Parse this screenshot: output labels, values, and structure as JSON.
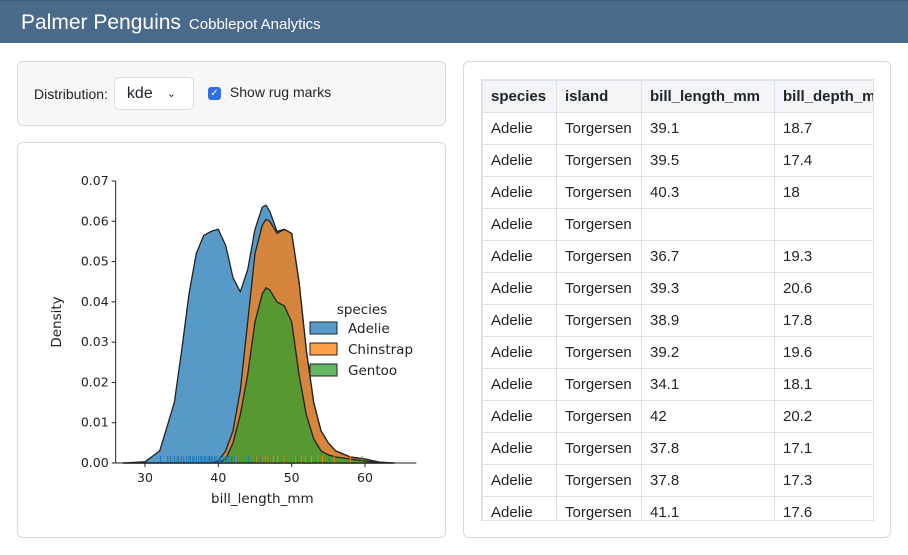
{
  "header": {
    "title": "Palmer Penguins",
    "subtitle": "Cobblepot Analytics"
  },
  "controls": {
    "distribution_label": "Distribution:",
    "distribution_value": "kde",
    "rug_label": "Show rug marks",
    "rug_checked": true
  },
  "colors": {
    "header": "#4a6a8c",
    "Adelie": "#1f77b4",
    "Chinstrap": "#ff7f0e",
    "Gentoo": "#2ca02c",
    "checkbox": "#2f6fe4"
  },
  "chart_data": {
    "type": "area",
    "stacked": true,
    "xlabel": "bill_length_mm",
    "ylabel": "Density",
    "xlim": [
      26,
      67
    ],
    "ylim": [
      0,
      0.07
    ],
    "xticks": [
      30,
      40,
      50,
      60
    ],
    "yticks": [
      "0.00",
      "0.01",
      "0.02",
      "0.03",
      "0.04",
      "0.05",
      "0.06",
      "0.07"
    ],
    "legend_title": "species",
    "legend_position": "right",
    "x": [
      27,
      30,
      32,
      34,
      35,
      36,
      37,
      38,
      39,
      40,
      41,
      42,
      43,
      44,
      45,
      46,
      46.5,
      47,
      48,
      49,
      50,
      51,
      52,
      53,
      54,
      55,
      56,
      58,
      60,
      62,
      64
    ],
    "series": [
      {
        "name": "Adelie",
        "values": [
          0,
          0.0003,
          0.003,
          0.015,
          0.028,
          0.042,
          0.052,
          0.0565,
          0.0575,
          0.0575,
          0.051,
          0.038,
          0.0245,
          0.013,
          0.006,
          0.0045,
          0.0035,
          0.0025,
          0.0005,
          0,
          0,
          0,
          0,
          0,
          0,
          0,
          0,
          0,
          0,
          0,
          0
        ]
      },
      {
        "name": "Chinstrap",
        "values": [
          0,
          0,
          0,
          0,
          0,
          0,
          0,
          0,
          0,
          0.0005,
          0.002,
          0.003,
          0.006,
          0.013,
          0.017,
          0.017,
          0.017,
          0.017,
          0.017,
          0.019,
          0.022,
          0.023,
          0.016,
          0.009,
          0.005,
          0.003,
          0.0015,
          0.0005,
          0.0005,
          0.0002,
          0
        ]
      },
      {
        "name": "Gentoo",
        "values": [
          0,
          0,
          0,
          0,
          0,
          0,
          0,
          0,
          0,
          0,
          0.001,
          0.005,
          0.012,
          0.022,
          0.035,
          0.042,
          0.0435,
          0.043,
          0.04,
          0.039,
          0.035,
          0.022,
          0.012,
          0.006,
          0.003,
          0.002,
          0.0015,
          0.001,
          0.0005,
          0,
          0
        ]
      }
    ],
    "rug": {
      "Adelie": [
        32.1,
        33.1,
        33.5,
        34.0,
        34.4,
        34.6,
        35.0,
        35.3,
        35.7,
        36.0,
        36.2,
        36.5,
        36.7,
        37.0,
        37.3,
        37.6,
        37.8,
        38.1,
        38.3,
        38.6,
        38.8,
        39.0,
        39.2,
        39.5,
        39.7,
        40.1,
        40.3,
        40.6,
        40.9,
        41.1,
        41.4,
        41.8,
        42.2,
        42.5,
        44.1,
        45.8
      ],
      "Chinstrap": [
        42.4,
        45.2,
        46.0,
        46.4,
        46.8,
        47.5,
        48.1,
        49.0,
        49.5,
        50.0,
        50.5,
        51.3,
        51.9,
        52.7,
        53.5,
        54.2,
        55.8,
        58.0
      ],
      "Gentoo": [
        40.9,
        42.0,
        43.2,
        43.8,
        44.5,
        45.1,
        45.5,
        46.1,
        46.5,
        46.9,
        47.3,
        47.8,
        48.4,
        48.7,
        49.1,
        49.5,
        50.0,
        50.4,
        50.8,
        51.1,
        52.1,
        53.4,
        55.1,
        59.6
      ]
    }
  },
  "table": {
    "columns": [
      "species",
      "island",
      "bill_length_mm",
      "bill_depth_mm"
    ],
    "rows": [
      [
        "Adelie",
        "Torgersen",
        "39.1",
        "18.7"
      ],
      [
        "Adelie",
        "Torgersen",
        "39.5",
        "17.4"
      ],
      [
        "Adelie",
        "Torgersen",
        "40.3",
        "18"
      ],
      [
        "Adelie",
        "Torgersen",
        "",
        ""
      ],
      [
        "Adelie",
        "Torgersen",
        "36.7",
        "19.3"
      ],
      [
        "Adelie",
        "Torgersen",
        "39.3",
        "20.6"
      ],
      [
        "Adelie",
        "Torgersen",
        "38.9",
        "17.8"
      ],
      [
        "Adelie",
        "Torgersen",
        "39.2",
        "19.6"
      ],
      [
        "Adelie",
        "Torgersen",
        "34.1",
        "18.1"
      ],
      [
        "Adelie",
        "Torgersen",
        "42",
        "20.2"
      ],
      [
        "Adelie",
        "Torgersen",
        "37.8",
        "17.1"
      ],
      [
        "Adelie",
        "Torgersen",
        "37.8",
        "17.3"
      ],
      [
        "Adelie",
        "Torgersen",
        "41.1",
        "17.6"
      ]
    ]
  }
}
